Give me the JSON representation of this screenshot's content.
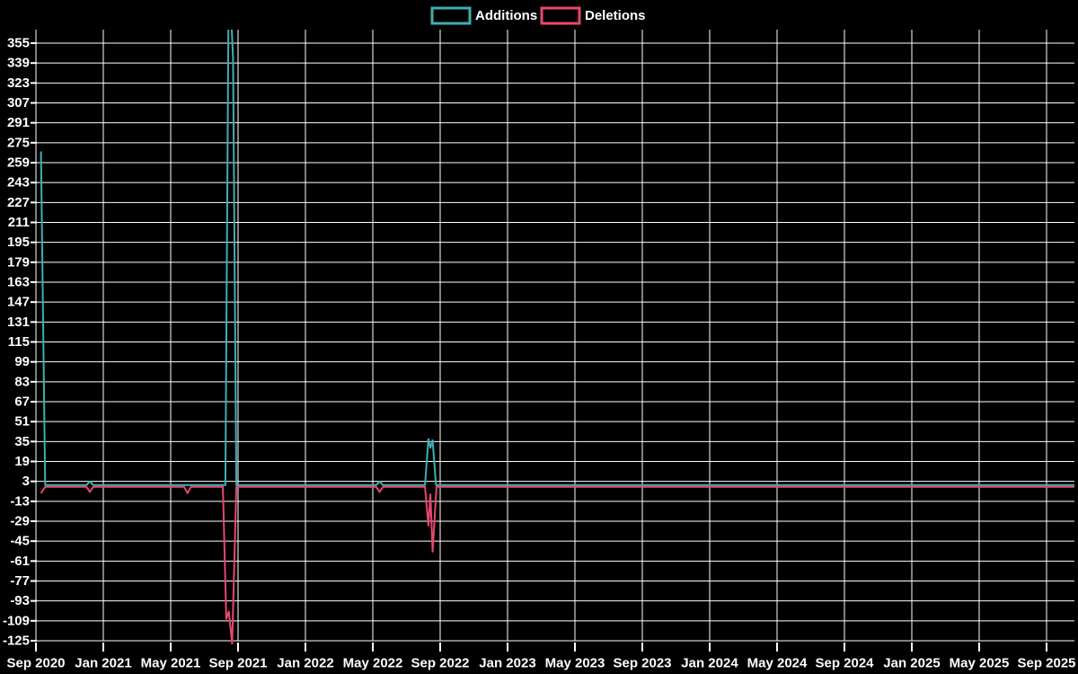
{
  "chart_data": {
    "type": "line",
    "title": "",
    "legend_position": "top-center",
    "background_color": "#000000",
    "grid_color": "#ffffff",
    "text_color": "#ffffff",
    "grid": true,
    "x_unit": "months_since_sep_2020",
    "x_tick_interval_months": 4,
    "xlim_months": [
      0,
      61.7
    ],
    "ylim": [
      -128,
      366
    ],
    "x_tick_labels": [
      "Sep 2020",
      "Jan 2021",
      "May 2021",
      "Sep 2021",
      "Jan 2022",
      "May 2022",
      "Sep 2022",
      "Jan 2023",
      "May 2023",
      "Sep 2023",
      "Jan 2024",
      "May 2024",
      "Sep 2024",
      "Jan 2025",
      "May 2025",
      "Sep 2025"
    ],
    "y_tick_labels": [
      355,
      339,
      323,
      307,
      291,
      275,
      259,
      243,
      227,
      211,
      195,
      179,
      163,
      147,
      131,
      115,
      99,
      83,
      67,
      51,
      35,
      19,
      3,
      -13,
      -29,
      -45,
      -61,
      -77,
      -93,
      -109,
      -125
    ],
    "series": [
      {
        "name": "Additions",
        "color": "#3fafb2",
        "clipped_at_plot_top": true,
        "points": [
          [
            0.3,
            268
          ],
          [
            0.55,
            0
          ],
          [
            3.0,
            0
          ],
          [
            3.2,
            3
          ],
          [
            3.4,
            0
          ],
          [
            11.25,
            0
          ],
          [
            11.45,
            420
          ],
          [
            11.7,
            343
          ],
          [
            11.9,
            0
          ],
          [
            20.2,
            0
          ],
          [
            20.4,
            3
          ],
          [
            20.6,
            0
          ],
          [
            23.1,
            0
          ],
          [
            23.3,
            37
          ],
          [
            23.42,
            30
          ],
          [
            23.55,
            36
          ],
          [
            23.75,
            0
          ],
          [
            61.7,
            0
          ]
        ]
      },
      {
        "name": "Deletions",
        "color": "#e8476e",
        "clipped_at_plot_top": false,
        "points": [
          [
            0.3,
            -5
          ],
          [
            0.55,
            0
          ],
          [
            3.0,
            0
          ],
          [
            3.2,
            -4
          ],
          [
            3.4,
            0
          ],
          [
            8.8,
            0
          ],
          [
            9.0,
            -5
          ],
          [
            9.2,
            0
          ],
          [
            11.1,
            0
          ],
          [
            11.3,
            -106
          ],
          [
            11.45,
            -100
          ],
          [
            11.65,
            -126
          ],
          [
            11.9,
            0
          ],
          [
            20.2,
            0
          ],
          [
            20.4,
            -4
          ],
          [
            20.6,
            0
          ],
          [
            23.1,
            0
          ],
          [
            23.3,
            -31
          ],
          [
            23.42,
            -6
          ],
          [
            23.55,
            -52
          ],
          [
            23.78,
            0
          ],
          [
            61.7,
            0
          ]
        ]
      }
    ]
  },
  "legend": {
    "items": [
      {
        "label": "Additions",
        "color": "#3fafb2"
      },
      {
        "label": "Deletions",
        "color": "#e8476e"
      }
    ]
  }
}
